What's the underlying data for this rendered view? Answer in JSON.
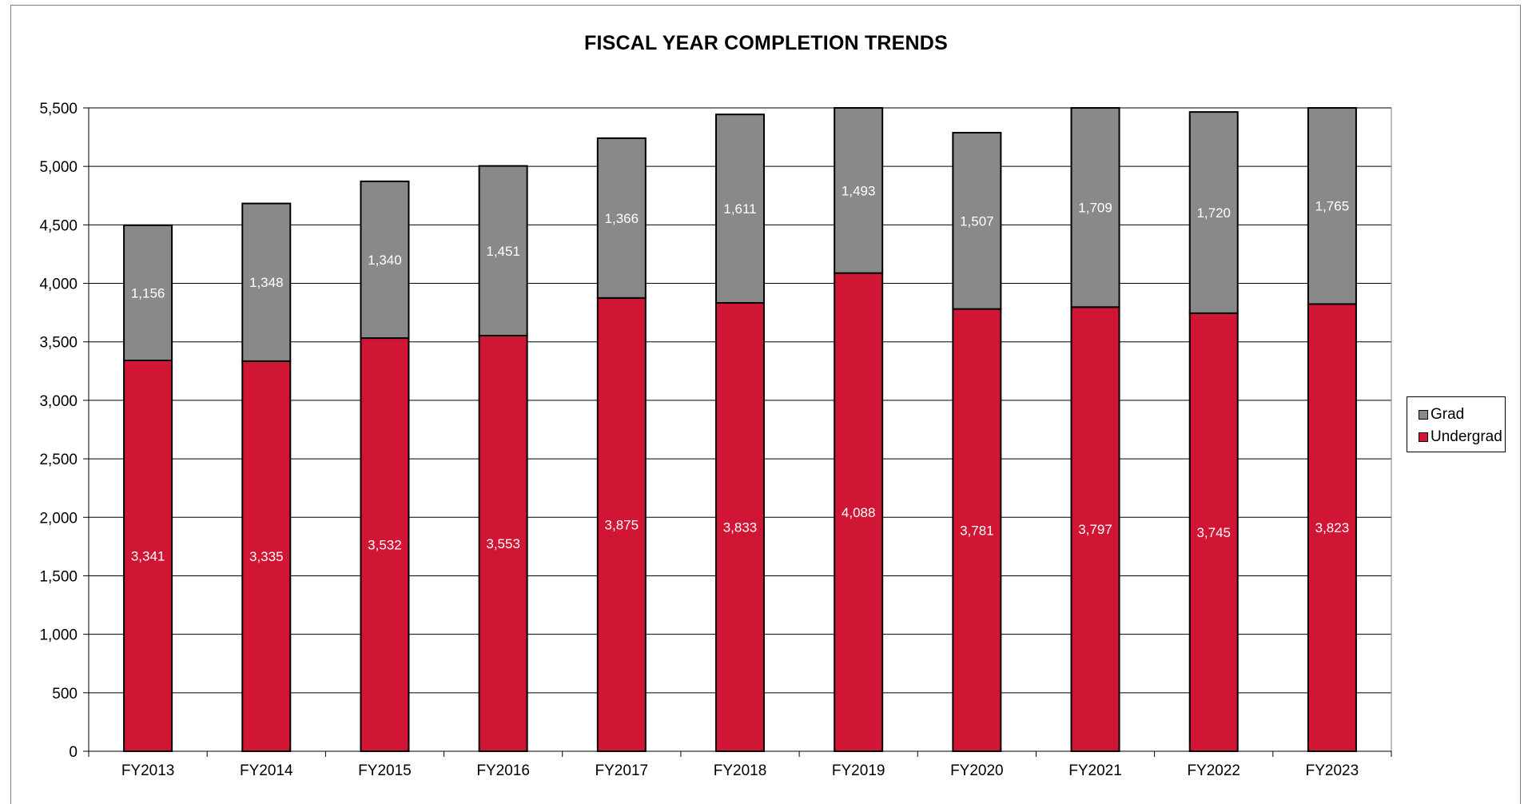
{
  "chart_data": {
    "type": "bar",
    "stacked": true,
    "title": "FISCAL YEAR COMPLETION TRENDS",
    "categories": [
      "FY2013",
      "FY2014",
      "FY2015",
      "FY2016",
      "FY2017",
      "FY2018",
      "FY2019",
      "FY2020",
      "FY2021",
      "FY2022",
      "FY2023"
    ],
    "series": [
      {
        "name": "Undergrad",
        "color": "#d11534",
        "values": [
          3341,
          3335,
          3532,
          3553,
          3875,
          3833,
          4088,
          3781,
          3797,
          3745,
          3823
        ],
        "labels": [
          "3,341",
          "3,335",
          "3,532",
          "3,553",
          "3,875",
          "3,833",
          "4,088",
          "3,781",
          "3,797",
          "3,745",
          "3,823"
        ]
      },
      {
        "name": "Grad",
        "color": "#898989",
        "values": [
          1156,
          1348,
          1340,
          1451,
          1366,
          1611,
          1493,
          1507,
          1709,
          1720,
          1765
        ],
        "labels": [
          "1,156",
          "1,348",
          "1,340",
          "1,451",
          "1,366",
          "1,611",
          "1,493",
          "1,507",
          "1,709",
          "1,720",
          "1,765"
        ]
      }
    ],
    "ylim": [
      0,
      5500
    ],
    "yticks": [
      0,
      500,
      1000,
      1500,
      2000,
      2500,
      3000,
      3500,
      4000,
      4500,
      5000,
      5500
    ],
    "ytick_labels": [
      "0",
      "500",
      "1,000",
      "1,500",
      "2,000",
      "2,500",
      "3,000",
      "3,500",
      "4,000",
      "4,500",
      "5,000",
      "5,500"
    ],
    "grid": true,
    "legend_position": "right",
    "legend_order": [
      "Grad",
      "Undergrad"
    ]
  }
}
